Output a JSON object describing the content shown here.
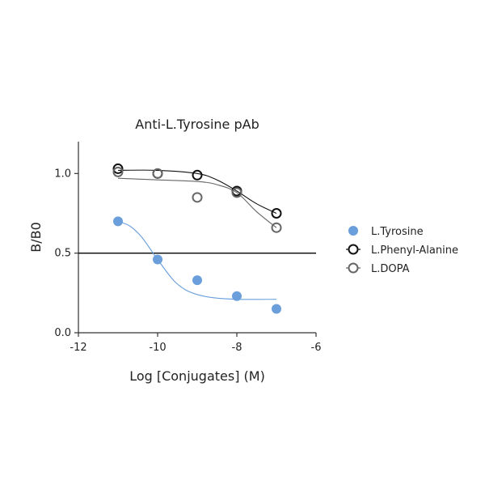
{
  "chart_data": {
    "type": "scatter",
    "title": "Anti-L.Tyrosine pAb",
    "xlabel": "Log [Conjugates] (M)",
    "ylabel": "B/B0",
    "xlim": [
      -12,
      -6
    ],
    "ylim": [
      0,
      1.2
    ],
    "xticks": [
      -12,
      -10,
      -8,
      -6
    ],
    "yticks": [
      0.0,
      0.5,
      1.0
    ],
    "xtick_labels": [
      "-12",
      "-10",
      "-8",
      "-6"
    ],
    "ytick_labels": [
      "0.0",
      "0.5",
      "1.0"
    ],
    "reference_line": {
      "y": 0.5,
      "color": "#000000"
    },
    "grid": false,
    "legend_position": "right",
    "series": [
      {
        "name": "L.Tyrosine",
        "marker": "filled-circle",
        "color": "#6a9fdc",
        "points": [
          {
            "x": -11,
            "y": 0.7
          },
          {
            "x": -10,
            "y": 0.46
          },
          {
            "x": -9,
            "y": 0.33
          },
          {
            "x": -8,
            "y": 0.23
          },
          {
            "x": -7,
            "y": 0.15
          }
        ],
        "fit": [
          {
            "x": -11,
            "y": 0.7
          },
          {
            "x": -10.7,
            "y": 0.67
          },
          {
            "x": -10.4,
            "y": 0.6
          },
          {
            "x": -10.0,
            "y": 0.46
          },
          {
            "x": -9.6,
            "y": 0.33
          },
          {
            "x": -9.3,
            "y": 0.27
          },
          {
            "x": -9.0,
            "y": 0.24
          },
          {
            "x": -8.6,
            "y": 0.22
          },
          {
            "x": -8.0,
            "y": 0.21
          },
          {
            "x": -7.0,
            "y": 0.21
          }
        ]
      },
      {
        "name": "L.Phenyl-Alanine",
        "marker": "open-circle",
        "color": "#111111",
        "points": [
          {
            "x": -11,
            "y": 1.03
          },
          {
            "x": -10,
            "y": 1.0
          },
          {
            "x": -9,
            "y": 0.99
          },
          {
            "x": -8,
            "y": 0.89
          },
          {
            "x": -7,
            "y": 0.75
          }
        ],
        "fit": [
          {
            "x": -11,
            "y": 1.02
          },
          {
            "x": -10,
            "y": 1.02
          },
          {
            "x": -9.0,
            "y": 1.0
          },
          {
            "x": -8.5,
            "y": 0.96
          },
          {
            "x": -8.0,
            "y": 0.89
          },
          {
            "x": -7.5,
            "y": 0.81
          },
          {
            "x": -7.0,
            "y": 0.75
          }
        ]
      },
      {
        "name": "L.DOPA",
        "marker": "open-circle",
        "color": "#666666",
        "points": [
          {
            "x": -11,
            "y": 1.01
          },
          {
            "x": -10,
            "y": 1.0
          },
          {
            "x": -9,
            "y": 0.85
          },
          {
            "x": -8,
            "y": 0.88
          },
          {
            "x": -7,
            "y": 0.66
          }
        ],
        "fit": [
          {
            "x": -11,
            "y": 0.97
          },
          {
            "x": -10,
            "y": 0.96
          },
          {
            "x": -9.0,
            "y": 0.95
          },
          {
            "x": -8.5,
            "y": 0.93
          },
          {
            "x": -8.0,
            "y": 0.88
          },
          {
            "x": -7.5,
            "y": 0.76
          },
          {
            "x": -7.0,
            "y": 0.66
          }
        ]
      }
    ]
  }
}
